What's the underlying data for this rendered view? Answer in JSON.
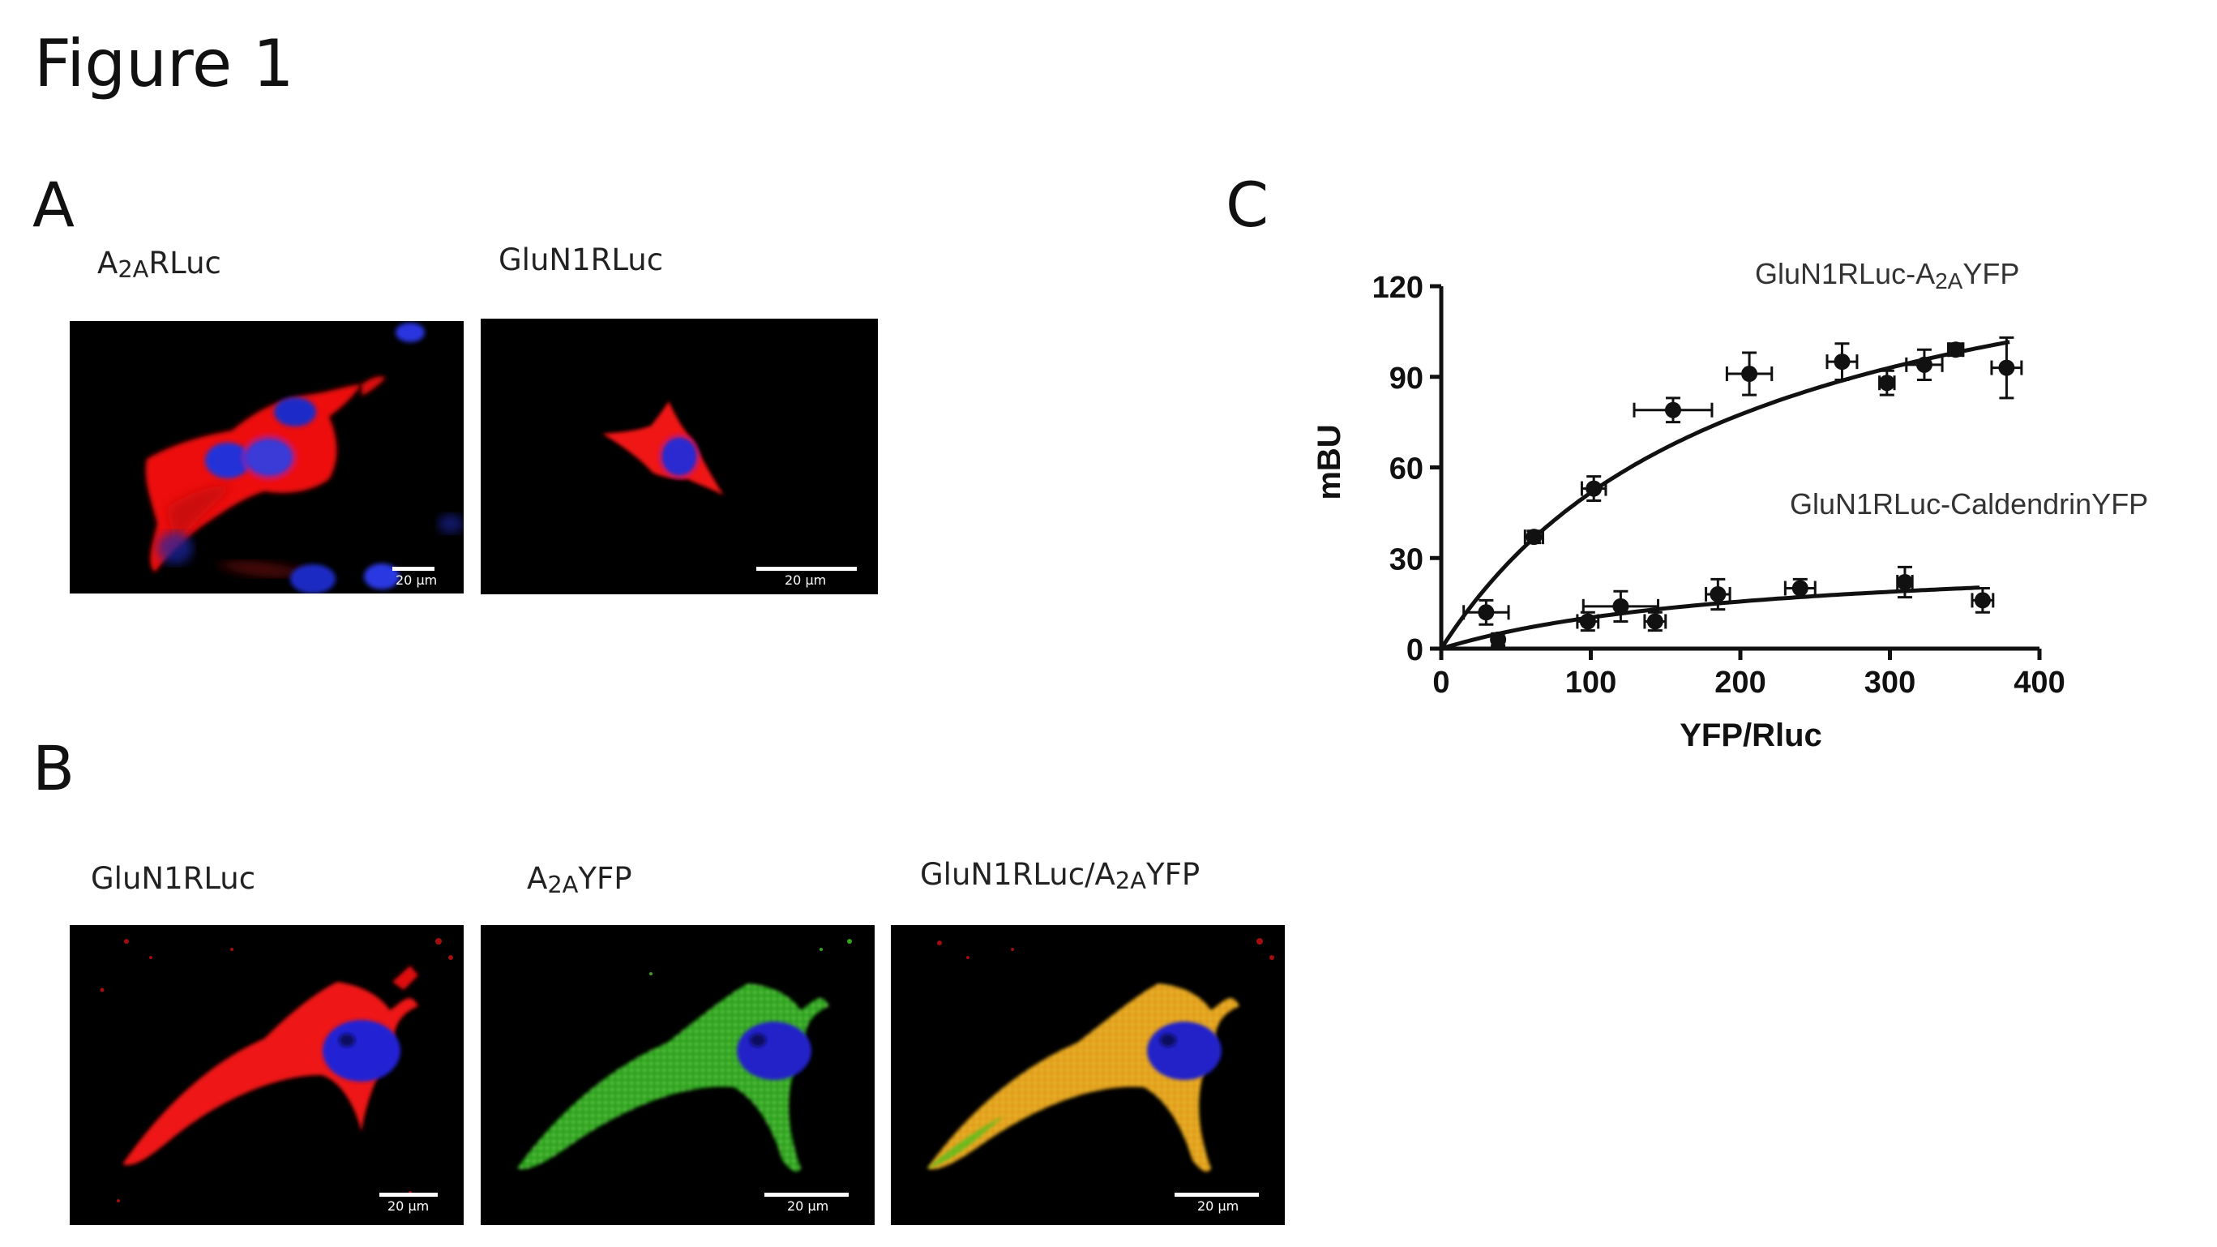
{
  "figure": {
    "title": "Figure 1"
  },
  "panels": {
    "a": {
      "letter": "A",
      "images": [
        {
          "label_main": "A",
          "label_sub": "2A",
          "label_rest": "RLuc",
          "scale": "20 µm"
        },
        {
          "label_main": "GluN1RLuc",
          "label_sub": "",
          "label_rest": "",
          "scale": "20 µm"
        }
      ]
    },
    "b": {
      "letter": "B",
      "images": [
        {
          "label_main": "GluN1RLuc",
          "label_sub": "",
          "label_rest": "",
          "scale": "20 µm"
        },
        {
          "label_main": "A",
          "label_sub": "2A",
          "label_rest": "YFP",
          "scale": "20 µm"
        },
        {
          "label_main": "GluN1RLuc/A",
          "label_sub": "2A",
          "label_rest": "YFP",
          "scale": "20 µm"
        }
      ]
    },
    "c": {
      "letter": "C"
    }
  },
  "colors": {
    "nucleus": "#1a2bd6",
    "red_channel": "#ff1a1a",
    "green_channel": "#3cc21e",
    "merge": "#e8a21a"
  },
  "chart_data": {
    "type": "scatter",
    "xlabel": "YFP/Rluc",
    "ylabel": "mBU",
    "xlim": [
      0,
      400
    ],
    "ylim": [
      0,
      120
    ],
    "xticks": [
      0,
      100,
      200,
      300,
      400
    ],
    "yticks": [
      0,
      30,
      60,
      90,
      120
    ],
    "series": [
      {
        "name": "GluN1RLuc-A2AYFP",
        "name_main": "GluN1RLuc-A",
        "name_sub": "2A",
        "name_rest": "YFP",
        "points": [
          {
            "x": 30,
            "y": 12,
            "xerr": 15,
            "yerr": 4
          },
          {
            "x": 62,
            "y": 37,
            "xerr": 6,
            "yerr": 2
          },
          {
            "x": 102,
            "y": 53,
            "xerr": 8,
            "yerr": 4
          },
          {
            "x": 155,
            "y": 79,
            "xerr": 26,
            "yerr": 4
          },
          {
            "x": 206,
            "y": 91,
            "xerr": 15,
            "yerr": 7
          },
          {
            "x": 268,
            "y": 95,
            "xerr": 10,
            "yerr": 6
          },
          {
            "x": 298,
            "y": 88,
            "xerr": 5,
            "yerr": 4
          },
          {
            "x": 323,
            "y": 94,
            "xerr": 12,
            "yerr": 5
          },
          {
            "x": 344,
            "y": 99,
            "xerr": 5,
            "yerr": 2
          },
          {
            "x": 378,
            "y": 93,
            "xerr": 10,
            "yerr": 10
          }
        ],
        "fit_curve": {
          "model": "hyperbola",
          "bmax": 155,
          "k50": 200,
          "x_end": 380
        }
      },
      {
        "name": "GluN1RLuc-CaldendrinYFP",
        "name_main": "GluN1RLuc-CaldendrinYFP",
        "name_sub": "",
        "name_rest": "",
        "points": [
          {
            "x": 38,
            "y": 3,
            "xerr": 3,
            "yerr": 2
          },
          {
            "x": 98,
            "y": 9,
            "xerr": 7,
            "yerr": 3
          },
          {
            "x": 120,
            "y": 14,
            "xerr": 25,
            "yerr": 5
          },
          {
            "x": 143,
            "y": 9,
            "xerr": 7,
            "yerr": 3
          },
          {
            "x": 185,
            "y": 18,
            "xerr": 8,
            "yerr": 5
          },
          {
            "x": 240,
            "y": 20,
            "xerr": 10,
            "yerr": 3
          },
          {
            "x": 310,
            "y": 22,
            "xerr": 5,
            "yerr": 5
          },
          {
            "x": 362,
            "y": 16,
            "xerr": 7,
            "yerr": 4
          }
        ],
        "fit_curve": {
          "model": "hyperbola",
          "bmax": 32,
          "k50": 210,
          "x_end": 360
        }
      }
    ]
  }
}
